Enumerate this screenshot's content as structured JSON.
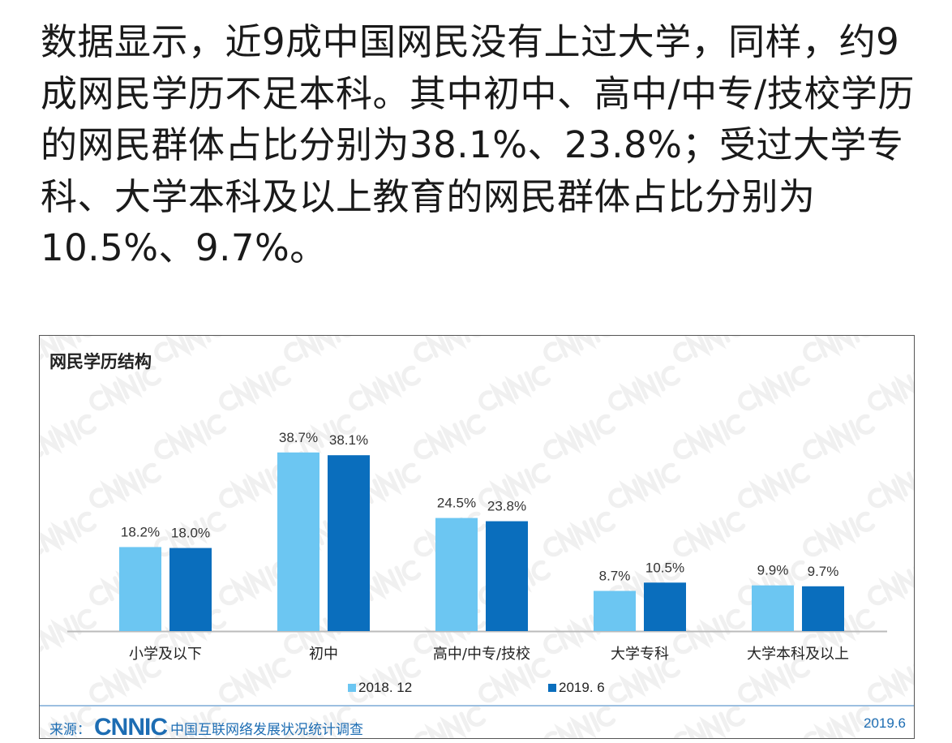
{
  "article": {
    "text": "数据显示，近9成中国网民没有上过大学，同样，约9成网民学历不足本科。其中初中、高中/中专/技校学历的网民群体占比分别为38.1%、23.8%；受过大学专科、大学本科及以上教育的网民群体占比分别为10.5%、9.7%。"
  },
  "chart_data": {
    "type": "bar",
    "title": "网民学历结构",
    "categories": [
      "小学及以下",
      "初中",
      "高中/中专/技校",
      "大学专科",
      "大学本科及以上"
    ],
    "series": [
      {
        "name": "2018. 12",
        "values": [
          18.2,
          38.7,
          24.5,
          8.7,
          9.9
        ],
        "labels": [
          "18.2%",
          "38.7%",
          "24.5%",
          "8.7%",
          "9.9%"
        ],
        "color": "#6cc6f2"
      },
      {
        "name": "2019. 6",
        "values": [
          18.0,
          38.1,
          23.8,
          10.5,
          9.7
        ],
        "labels": [
          "18.0%",
          "38.1%",
          "23.8%",
          "10.5%",
          "9.7%"
        ],
        "color": "#0a6ebd"
      }
    ],
    "ylim": [
      0,
      45
    ],
    "unit": "%",
    "xlabel": "",
    "ylabel": "",
    "grid": false,
    "legend": "bottom",
    "watermark": "CNNIC"
  },
  "footer": {
    "source_label": "来源：",
    "logo": "CNNIC",
    "source_name": "中国互联网络发展状况统计调查",
    "date": "2019.6"
  }
}
